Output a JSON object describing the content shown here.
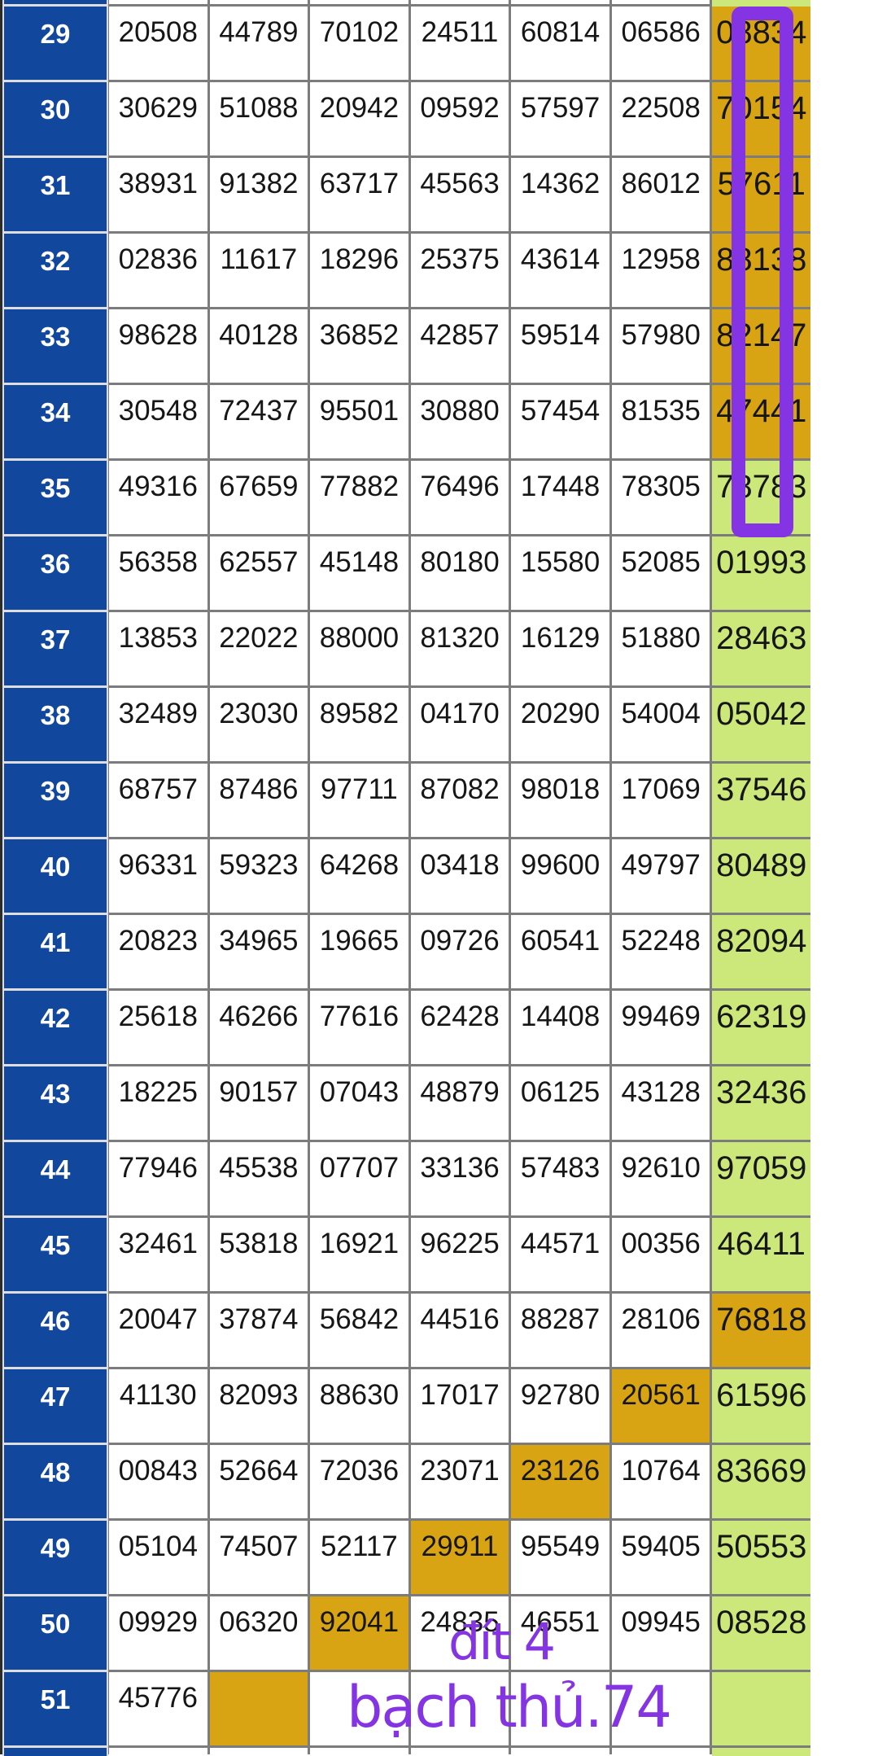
{
  "table": {
    "row_header_column": "draw index numbers",
    "rows": [
      {
        "label": "",
        "cells": [
          "",
          "",
          "",
          "",
          "",
          "",
          ""
        ],
        "colors": [
          "w",
          "w",
          "w",
          "w",
          "w",
          "w",
          "g"
        ],
        "sliver": true
      },
      {
        "label": "29",
        "cells": [
          "20508",
          "44789",
          "70102",
          "24511",
          "60814",
          "06586",
          "08834"
        ],
        "colors": [
          "w",
          "w",
          "w",
          "w",
          "w",
          "w",
          "o"
        ]
      },
      {
        "label": "30",
        "cells": [
          "30629",
          "51088",
          "20942",
          "09592",
          "57597",
          "22508",
          "70154"
        ],
        "colors": [
          "w",
          "w",
          "w",
          "w",
          "w",
          "w",
          "o"
        ]
      },
      {
        "label": "31",
        "cells": [
          "38931",
          "91382",
          "63717",
          "45563",
          "14362",
          "86012",
          "57611"
        ],
        "colors": [
          "w",
          "w",
          "w",
          "w",
          "w",
          "w",
          "o"
        ]
      },
      {
        "label": "32",
        "cells": [
          "02836",
          "11617",
          "18296",
          "25375",
          "43614",
          "12958",
          "88138"
        ],
        "colors": [
          "w",
          "w",
          "w",
          "w",
          "w",
          "w",
          "o"
        ]
      },
      {
        "label": "33",
        "cells": [
          "98628",
          "40128",
          "36852",
          "42857",
          "59514",
          "57980",
          "82147"
        ],
        "colors": [
          "w",
          "w",
          "w",
          "w",
          "w",
          "w",
          "o"
        ]
      },
      {
        "label": "34",
        "cells": [
          "30548",
          "72437",
          "95501",
          "30880",
          "57454",
          "81535",
          "47441"
        ],
        "colors": [
          "w",
          "w",
          "w",
          "w",
          "w",
          "w",
          "o"
        ]
      },
      {
        "label": "35",
        "cells": [
          "49316",
          "67659",
          "77882",
          "76496",
          "17448",
          "78305",
          "78783"
        ],
        "colors": [
          "w",
          "w",
          "w",
          "w",
          "w",
          "w",
          "g"
        ]
      },
      {
        "label": "36",
        "cells": [
          "56358",
          "62557",
          "45148",
          "80180",
          "15580",
          "52085",
          "01993"
        ],
        "colors": [
          "w",
          "w",
          "w",
          "w",
          "w",
          "w",
          "g"
        ]
      },
      {
        "label": "37",
        "cells": [
          "13853",
          "22022",
          "88000",
          "81320",
          "16129",
          "51880",
          "28463"
        ],
        "colors": [
          "w",
          "w",
          "w",
          "w",
          "w",
          "w",
          "g"
        ]
      },
      {
        "label": "38",
        "cells": [
          "32489",
          "23030",
          "89582",
          "04170",
          "20290",
          "54004",
          "05042"
        ],
        "colors": [
          "w",
          "w",
          "w",
          "w",
          "w",
          "w",
          "g"
        ]
      },
      {
        "label": "39",
        "cells": [
          "68757",
          "87486",
          "97711",
          "87082",
          "98018",
          "17069",
          "37546"
        ],
        "colors": [
          "w",
          "w",
          "w",
          "w",
          "w",
          "w",
          "g"
        ]
      },
      {
        "label": "40",
        "cells": [
          "96331",
          "59323",
          "64268",
          "03418",
          "99600",
          "49797",
          "80489"
        ],
        "colors": [
          "w",
          "w",
          "w",
          "w",
          "w",
          "w",
          "g"
        ]
      },
      {
        "label": "41",
        "cells": [
          "20823",
          "34965",
          "19665",
          "09726",
          "60541",
          "52248",
          "82094"
        ],
        "colors": [
          "w",
          "w",
          "w",
          "w",
          "w",
          "w",
          "g"
        ]
      },
      {
        "label": "42",
        "cells": [
          "25618",
          "46266",
          "77616",
          "62428",
          "14408",
          "99469",
          "62319"
        ],
        "colors": [
          "w",
          "w",
          "w",
          "w",
          "w",
          "w",
          "g"
        ]
      },
      {
        "label": "43",
        "cells": [
          "18225",
          "90157",
          "07043",
          "48879",
          "06125",
          "43128",
          "32436"
        ],
        "colors": [
          "w",
          "w",
          "w",
          "w",
          "w",
          "w",
          "g"
        ]
      },
      {
        "label": "44",
        "cells": [
          "77946",
          "45538",
          "07707",
          "33136",
          "57483",
          "92610",
          "97059"
        ],
        "colors": [
          "w",
          "w",
          "w",
          "w",
          "w",
          "w",
          "g"
        ]
      },
      {
        "label": "45",
        "cells": [
          "32461",
          "53818",
          "16921",
          "96225",
          "44571",
          "00356",
          "46411"
        ],
        "colors": [
          "w",
          "w",
          "w",
          "w",
          "w",
          "w",
          "g"
        ]
      },
      {
        "label": "46",
        "cells": [
          "20047",
          "37874",
          "56842",
          "44516",
          "88287",
          "28106",
          "76818"
        ],
        "colors": [
          "w",
          "w",
          "w",
          "w",
          "w",
          "w",
          "o"
        ]
      },
      {
        "label": "47",
        "cells": [
          "41130",
          "82093",
          "88630",
          "17017",
          "92780",
          "20561",
          "61596"
        ],
        "colors": [
          "w",
          "w",
          "w",
          "w",
          "w",
          "o",
          "g"
        ]
      },
      {
        "label": "48",
        "cells": [
          "00843",
          "52664",
          "72036",
          "23071",
          "23126",
          "10764",
          "83669"
        ],
        "colors": [
          "w",
          "w",
          "w",
          "w",
          "o",
          "w",
          "g"
        ]
      },
      {
        "label": "49",
        "cells": [
          "05104",
          "74507",
          "52117",
          "29911",
          "95549",
          "59405",
          "50553"
        ],
        "colors": [
          "w",
          "w",
          "w",
          "o",
          "w",
          "w",
          "g"
        ]
      },
      {
        "label": "50",
        "cells": [
          "09929",
          "06320",
          "92041",
          "24835",
          "46551",
          "09945",
          "08528"
        ],
        "colors": [
          "w",
          "w",
          "o",
          "w",
          "w",
          "w",
          "g"
        ]
      },
      {
        "label": "51",
        "cells": [
          "45776",
          "",
          "",
          "",
          "",
          "",
          ""
        ],
        "colors": [
          "w",
          "o",
          "w",
          "w",
          "w",
          "w",
          "g"
        ]
      },
      {
        "label": "",
        "cells": [
          "",
          "",
          "",
          "",
          "",
          "",
          ""
        ],
        "colors": [
          "w",
          "w",
          "w",
          "w",
          "w",
          "w",
          "g"
        ],
        "sliver": true
      }
    ]
  },
  "annotations": {
    "line1": "đít 4",
    "line2": "bạch thủ.74"
  },
  "colors": {
    "row_header_blue": "#11489e",
    "highlight_orange": "#d8a414",
    "highlight_green": "#cce87b",
    "annotation_purple": "#8434e2",
    "grid_line_gray": "#7c7c7c",
    "number_text": "#161616"
  }
}
